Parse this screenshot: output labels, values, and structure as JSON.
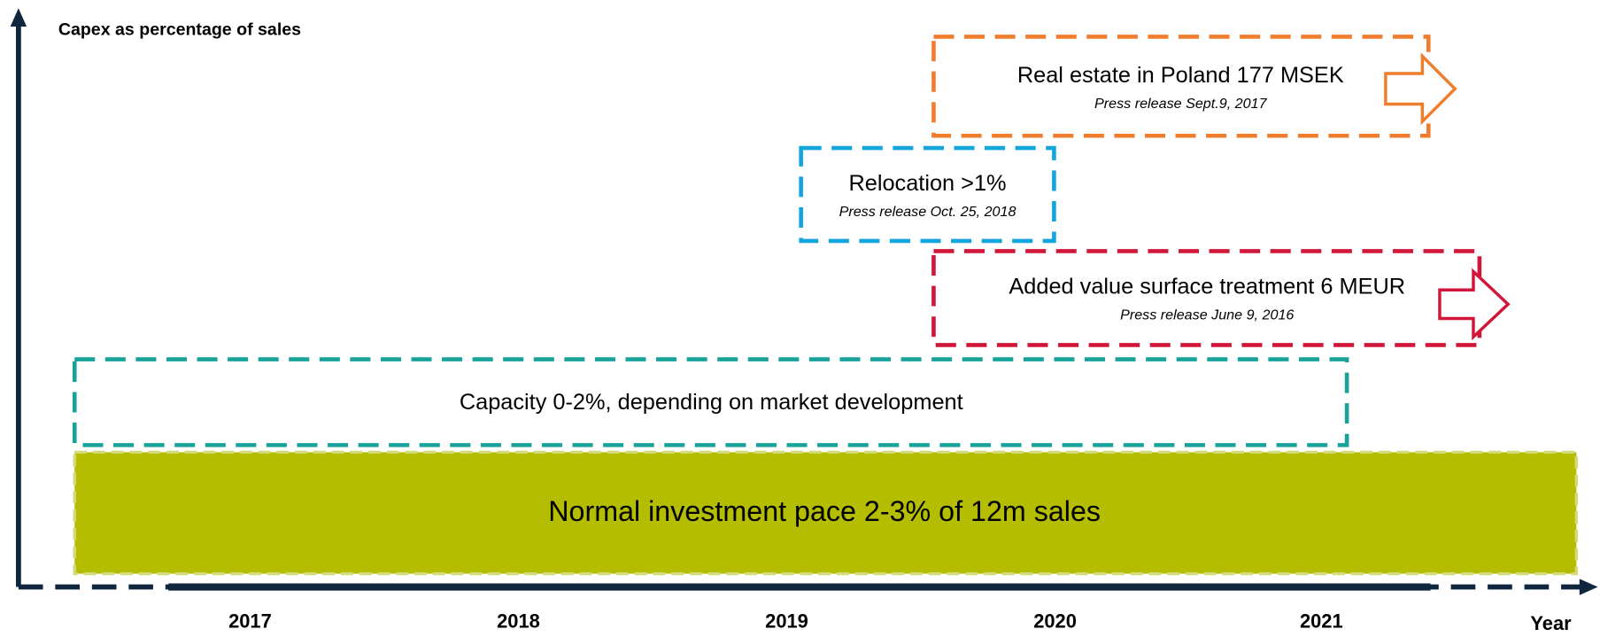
{
  "y_axis_label": "Capex as percentage of sales",
  "x_axis_label": "Year",
  "years": [
    "2017",
    "2018",
    "2019",
    "2020",
    "2021"
  ],
  "boxes": [
    {
      "title": "Real estate in Poland 177 MSEK",
      "subtitle": "Press release Sept.9, 2017"
    },
    {
      "title": "Relocation >1%",
      "subtitle": "Press release Oct. 25, 2018"
    },
    {
      "title": "Added value surface treatment 6 MEUR",
      "subtitle": "Press release June 9, 2016"
    },
    {
      "title": "Capacity 0-2%, depending on market development"
    },
    {
      "title": "Normal investment pace 2-3% of 12m sales"
    }
  ]
}
